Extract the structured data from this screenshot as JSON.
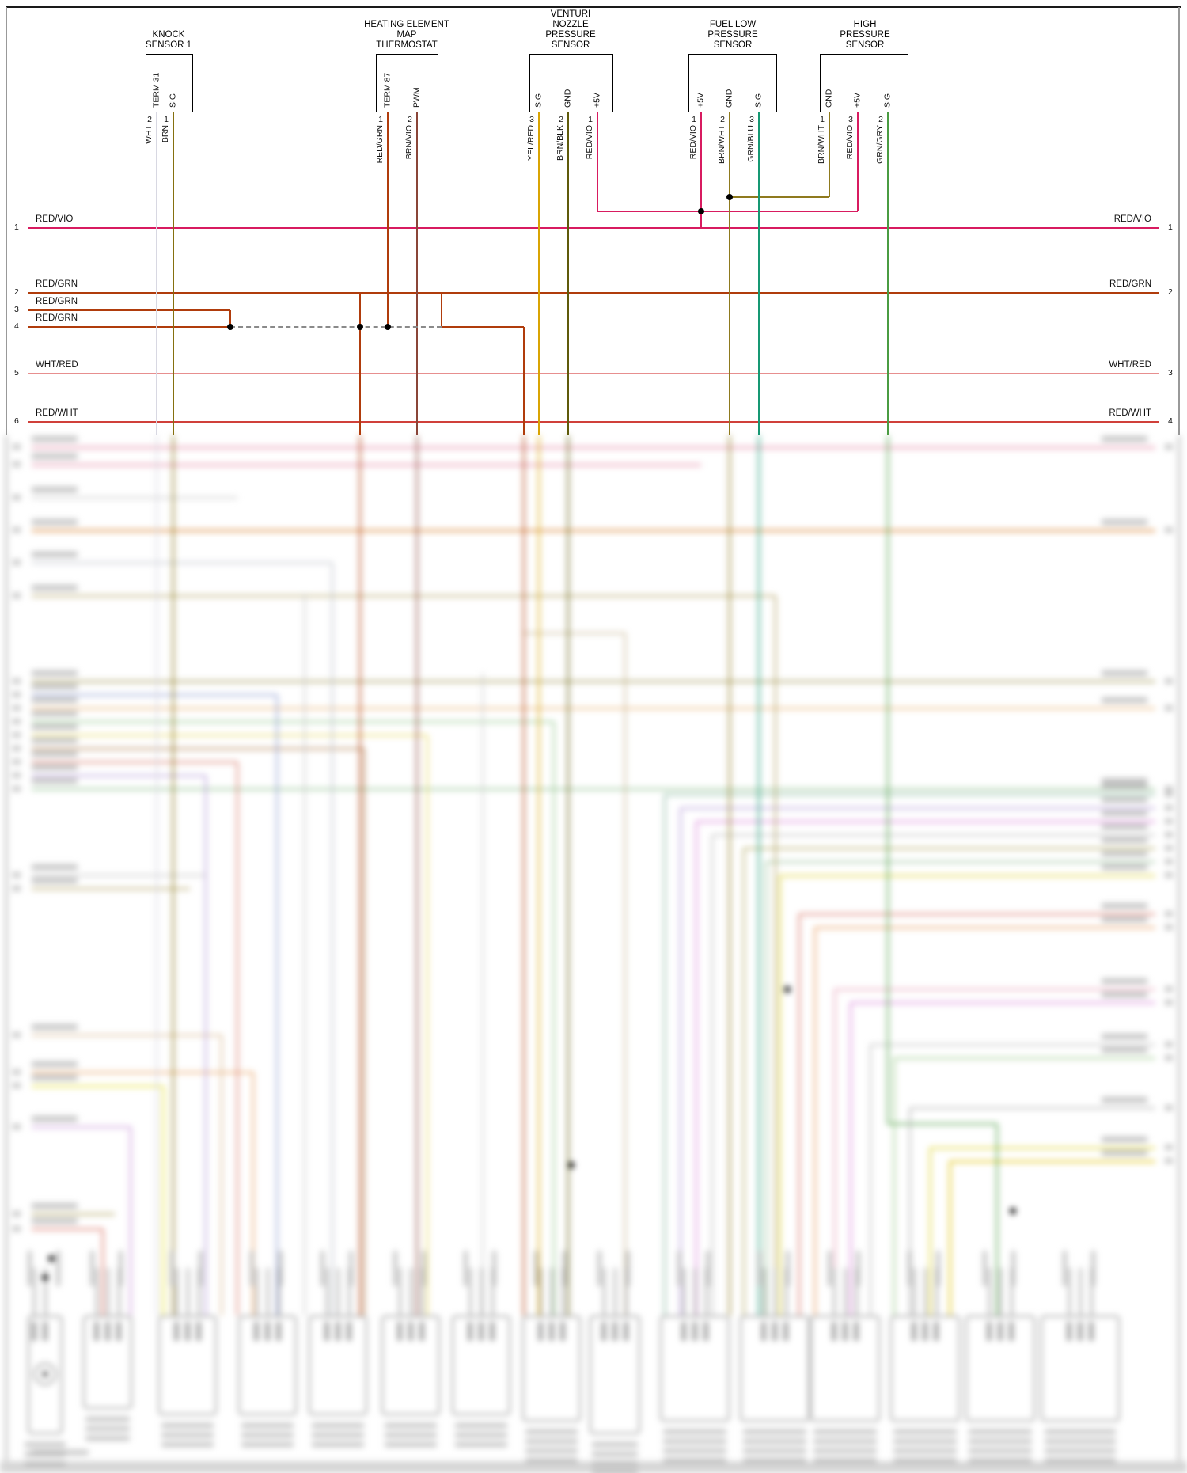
{
  "diagram": {
    "connectors": [
      {
        "title_lines": [
          "KNOCK",
          "SENSOR 1"
        ],
        "pins": [
          {
            "pin_label": "TERM 31",
            "pin_num": "2",
            "wire": "WHT",
            "color": "#d8d8e2"
          },
          {
            "pin_label": "SIG",
            "pin_num": "1",
            "wire": "BRN",
            "color": "#85700f"
          }
        ]
      },
      {
        "title_lines": [
          "HEATING ELEMENT",
          "MAP",
          "THERMOSTAT"
        ],
        "pins": [
          {
            "pin_label": "TERM 87",
            "pin_num": "1",
            "wire": "RED/GRN",
            "color": "#b03c0c"
          },
          {
            "pin_label": "PWM",
            "pin_num": "2",
            "wire": "BRN/VIO",
            "color": "#8a4538"
          }
        ]
      },
      {
        "title_lines": [
          "VENTURI",
          "NOZZLE",
          "PRESSURE",
          "SENSOR"
        ],
        "pins": [
          {
            "pin_label": "SIG",
            "pin_num": "3",
            "wire": "YEL/RED",
            "color": "#d9a404"
          },
          {
            "pin_label": "GND",
            "pin_num": "2",
            "wire": "BRN/BLK",
            "color": "#5f5a0a"
          },
          {
            "pin_label": "+5V",
            "pin_num": "1",
            "wire": "RED/VIO",
            "color": "#d81b60"
          }
        ]
      },
      {
        "title_lines": [
          "FUEL LOW",
          "PRESSURE",
          "SENSOR"
        ],
        "pins": [
          {
            "pin_label": "+5V",
            "pin_num": "1",
            "wire": "RED/VIO",
            "color": "#d81b60"
          },
          {
            "pin_label": "GND",
            "pin_num": "2",
            "wire": "BRN/WHT",
            "color": "#8f7a1e"
          },
          {
            "pin_label": "SIG",
            "pin_num": "3",
            "wire": "GRN/BLU",
            "color": "#169873"
          }
        ]
      },
      {
        "title_lines": [
          "HIGH",
          "PRESSURE",
          "SENSOR"
        ],
        "pins": [
          {
            "pin_label": "GND",
            "pin_num": "1",
            "wire": "BRN/WHT",
            "color": "#8f7a1e"
          },
          {
            "pin_label": "+5V",
            "pin_num": "3",
            "wire": "RED/VIO",
            "color": "#d81b60"
          },
          {
            "pin_label": "SIG",
            "pin_num": "2",
            "wire": "GRN/GRY",
            "color": "#4a9c42"
          }
        ]
      }
    ],
    "bus_wires": [
      {
        "left_num": "1",
        "left_label": "RED/VIO",
        "right_label": "RED/VIO",
        "right_num": "1",
        "color": "#d81b60"
      },
      {
        "left_num": "2",
        "left_label": "RED/GRN",
        "right_label": "RED/GRN",
        "right_num": "2",
        "color": "#b03c0c"
      },
      {
        "left_num": "3",
        "left_label": "RED/GRN",
        "right_label": "",
        "right_num": "",
        "color": "#b03c0c"
      },
      {
        "left_num": "4",
        "left_label": "RED/GRN",
        "right_label": "",
        "right_num": "",
        "color": "#b03c0c"
      },
      {
        "left_num": "5",
        "left_label": "WHT/RED",
        "right_label": "WHT/RED",
        "right_num": "3",
        "color": "#e78f8f"
      },
      {
        "left_num": "6",
        "left_label": "RED/WHT",
        "right_label": "RED/WHT",
        "right_num": "4",
        "color": "#d0403a"
      }
    ],
    "wire_colors": {
      "WHT": "#d8d8e2",
      "BRN": "#85700f",
      "RED_GRN": "#b03c0c",
      "BRN_VIO": "#8a4538",
      "YEL_RED": "#d9a404",
      "BRN_BLK": "#5f5a0a",
      "RED_VIO": "#d81b60",
      "BRN_WHT": "#8f7a1e",
      "GRN_BLU": "#169873",
      "GRN_GRY": "#4a9c42",
      "WHT_RED": "#e78f8f",
      "RED_WHT": "#d0403a"
    }
  }
}
